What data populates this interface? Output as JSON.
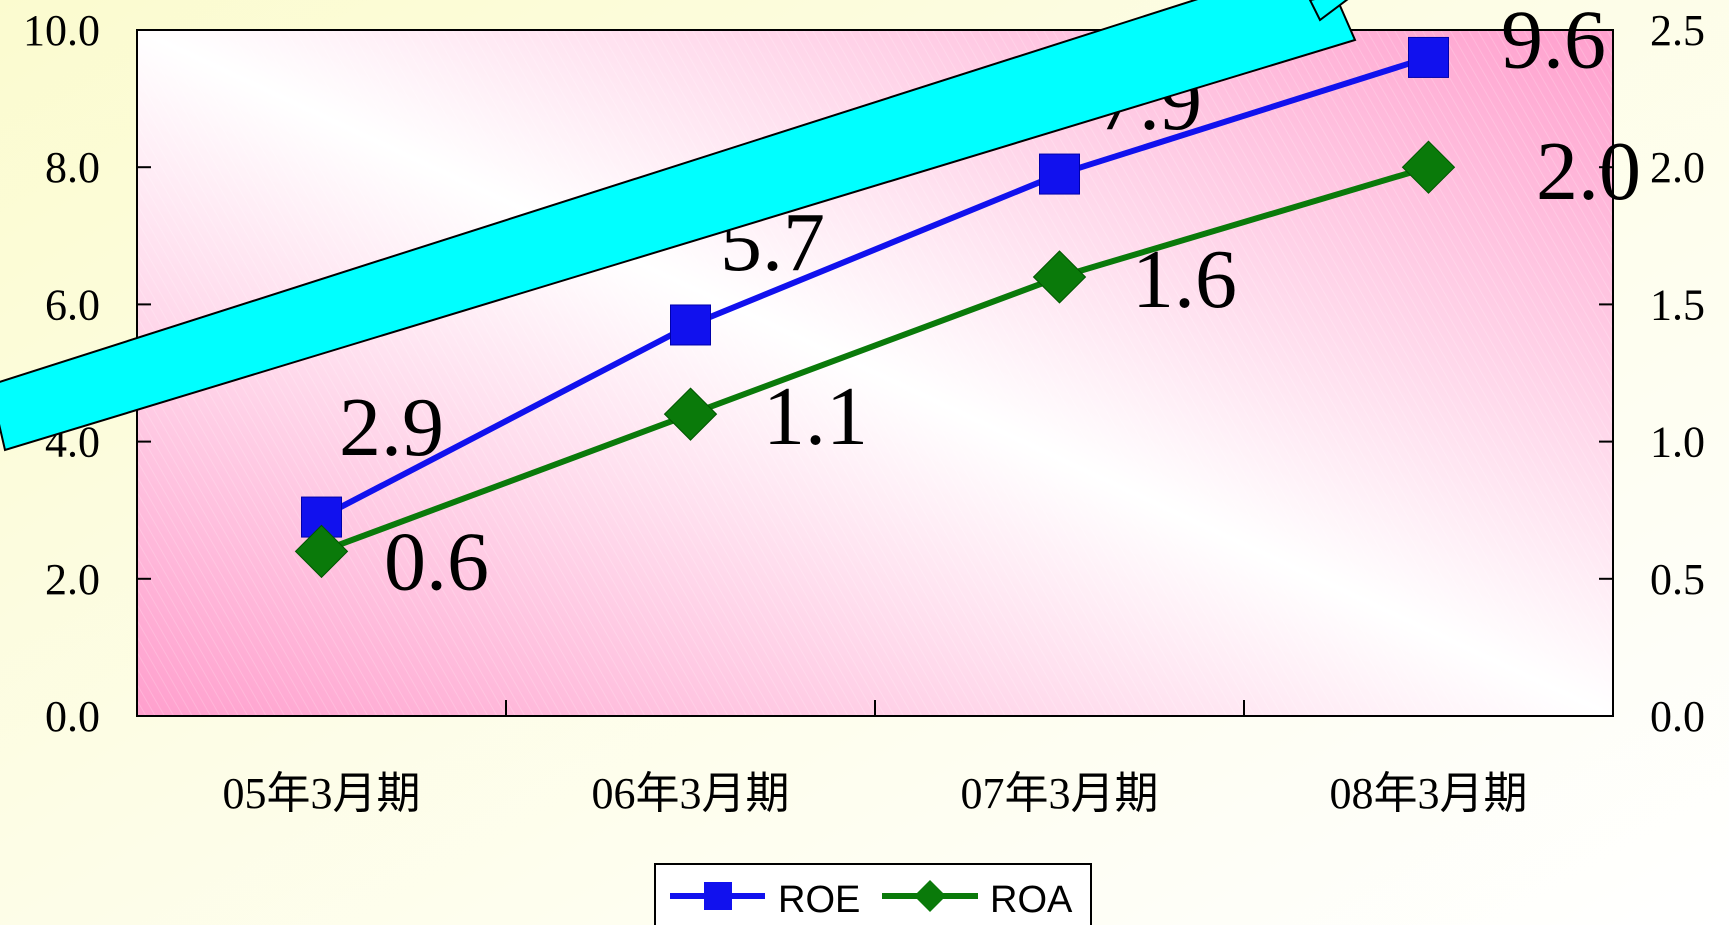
{
  "chart_data": {
    "type": "line",
    "categories": [
      "05年3月期",
      "06年3月期",
      "07年3月期",
      "08年3月期"
    ],
    "series": [
      {
        "name": "ROE",
        "axis": "left",
        "values": [
          2.9,
          5.7,
          7.9,
          9.6
        ],
        "color": "#1111ee",
        "marker": "square"
      },
      {
        "name": "ROA",
        "axis": "right",
        "values": [
          0.6,
          1.1,
          1.6,
          2.0
        ],
        "color": "#0a7a0a",
        "marker": "diamond"
      }
    ],
    "y_left": {
      "min": 0,
      "max": 10,
      "ticks": [
        "0.0",
        "2.0",
        "4.0",
        "6.0",
        "8.0",
        "10.0"
      ]
    },
    "y_right": {
      "min": 0,
      "max": 2.5,
      "ticks": [
        "0.0",
        "0.5",
        "1.0",
        "1.5",
        "2.0",
        "2.5"
      ]
    },
    "data_labels": {
      "ROE": [
        "2.9",
        "5.7",
        "7.9",
        "9.6"
      ],
      "ROA": [
        "0.6",
        "1.1",
        "1.6",
        "2.0"
      ]
    },
    "legend": {
      "position": "bottom",
      "items": [
        "ROE",
        "ROA"
      ]
    },
    "grid": false,
    "plot_background": "pink-gradient",
    "annotation_arrow_color": "#00ffff"
  }
}
